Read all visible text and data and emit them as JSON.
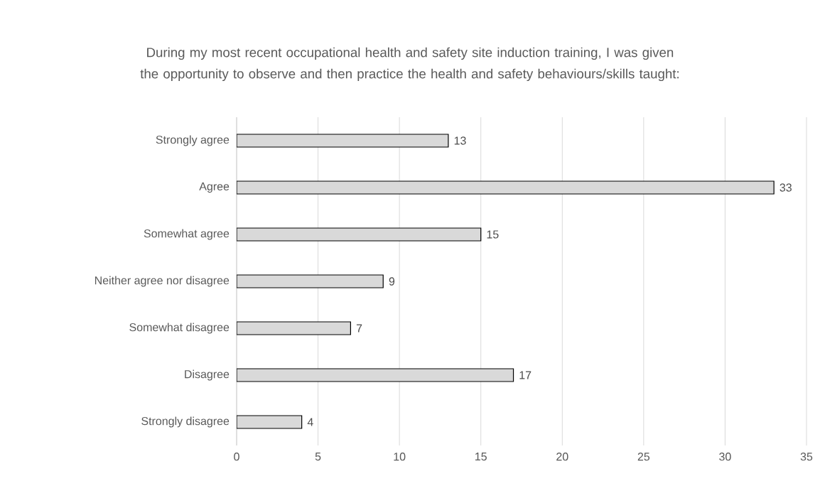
{
  "chart_data": {
    "type": "bar",
    "orientation": "horizontal",
    "title": "During my most recent occupational health and safety site induction training, I was given the opportunity to observe and then practice the health and safety behaviours/skills taught:",
    "categories": [
      "Strongly agree",
      "Agree",
      "Somewhat agree",
      "Neither agree nor disagree",
      "Somewhat disagree",
      "Disagree",
      "Strongly disagree"
    ],
    "values": [
      13,
      33,
      15,
      9,
      7,
      17,
      4
    ],
    "color": "#d9d9d9",
    "xlim": [
      0,
      35
    ],
    "xticks": [
      0,
      5,
      10,
      15,
      20,
      25,
      30,
      35
    ],
    "grid": "x",
    "data_labels": true
  }
}
